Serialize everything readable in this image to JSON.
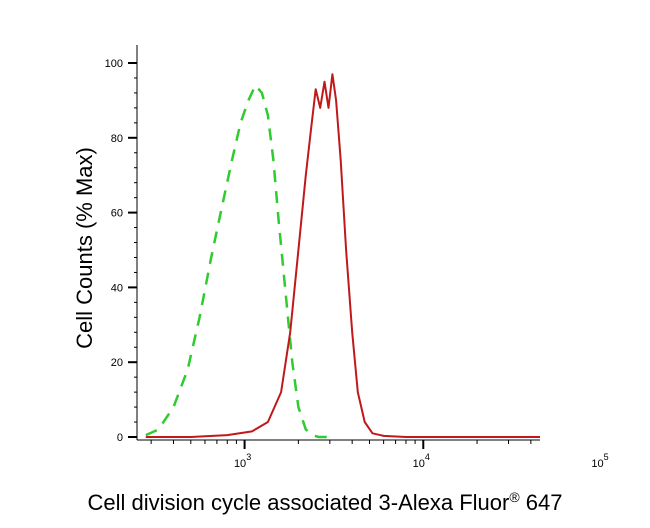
{
  "chart_data": {
    "type": "line",
    "title": "",
    "xlabel": "Cell division cycle associated 3-Alexa Fluor",
    "xlabel_superscript": "®",
    "xlabel_suffix": " 647",
    "ylabel": "Cell Counts (% Max)",
    "x_scale": "log",
    "xlim": [
      250,
      45000
    ],
    "ylim": [
      0,
      100
    ],
    "grid": false,
    "legend": "none",
    "x_ticks": [
      {
        "base": "10",
        "exp": "3",
        "value": 1000
      },
      {
        "base": "10",
        "exp": "4",
        "value": 10000
      },
      {
        "base": "10",
        "exp": "5",
        "value": 100000
      }
    ],
    "y_ticks": [
      "0",
      "20",
      "40",
      "60",
      "80",
      "100"
    ],
    "y_tick_values": [
      0,
      20,
      40,
      60,
      80,
      100
    ],
    "series": [
      {
        "color": "#2ecc2e",
        "style": "dashed",
        "x": [
          280,
          330,
          400,
          480,
          560,
          650,
          750,
          850,
          950,
          1050,
          1150,
          1250,
          1350,
          1450,
          1550,
          1700,
          1850,
          2000,
          2200,
          2400,
          2600,
          2800,
          3000
        ],
        "y": [
          0.5,
          2,
          8,
          18,
          32,
          48,
          62,
          74,
          84,
          90,
          94,
          92,
          86,
          74,
          58,
          38,
          20,
          8,
          2,
          0.5,
          0,
          0,
          0
        ]
      },
      {
        "color": "#c0181b",
        "style": "solid",
        "x": [
          280,
          500,
          800,
          1100,
          1350,
          1600,
          1800,
          2000,
          2200,
          2350,
          2500,
          2650,
          2800,
          2950,
          3100,
          3250,
          3450,
          3700,
          4000,
          4300,
          4700,
          5200,
          6000,
          8000,
          15000,
          45000
        ],
        "y": [
          0,
          0,
          0.5,
          1.5,
          4,
          12,
          28,
          50,
          70,
          82,
          93,
          88,
          95,
          88,
          97,
          90,
          74,
          50,
          28,
          12,
          4,
          1,
          0.3,
          0,
          0,
          0
        ]
      }
    ]
  }
}
